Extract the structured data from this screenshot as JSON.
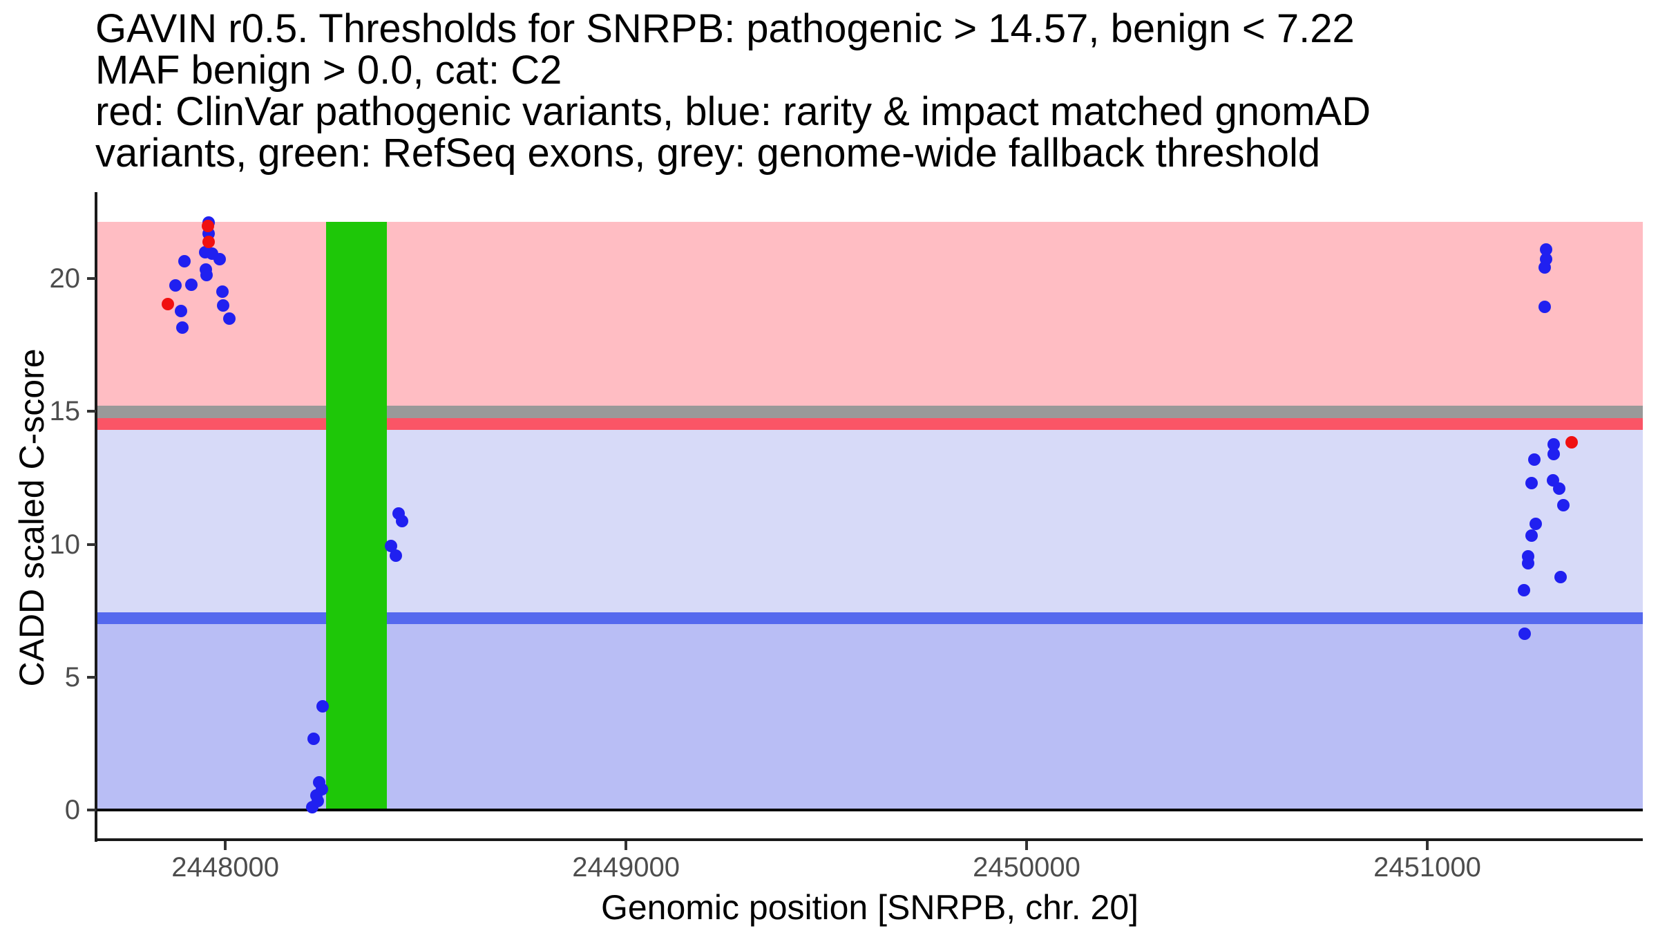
{
  "title": {
    "lines": [
      "GAVIN r0.5. Thresholds for SNRPB: pathogenic > 14.57, benign < 7.22",
      "MAF benign > 0.0, cat: C2",
      "red: ClinVar pathogenic variants, blue: rarity & impact matched gnomAD",
      "variants, green: RefSeq exons, grey: genome-wide fallback threshold"
    ]
  },
  "axes": {
    "y": {
      "label": "CADD scaled C-score",
      "ticks": [
        0,
        5,
        10,
        15,
        20
      ]
    },
    "x": {
      "label": "Genomic position [SNRPB, chr. 20]",
      "ticks": [
        2448000,
        2449000,
        2450000,
        2451000
      ]
    }
  },
  "chart_data": {
    "type": "scatter",
    "title": "GAVIN r0.5. Thresholds for SNRPB: pathogenic > 14.57, benign < 7.22; MAF benign > 0.0, cat: C2",
    "xlabel": "Genomic position [SNRPB, chr. 20]",
    "ylabel": "CADD scaled C-score",
    "xlim": [
      2447679,
      2451538
    ],
    "ylim": [
      -1.09,
      23.25
    ],
    "grid": false,
    "legend_position": "none",
    "thresholds": {
      "gene": "SNRPB",
      "pathogenic": 14.57,
      "benign": 7.22,
      "genome_wide_fallback": 15.0,
      "maf_benign": 0.0,
      "category": "C2"
    },
    "bands": [
      {
        "name": "pathogenic-region",
        "y0": 15.21,
        "y1": 22.13,
        "color": "#ffbdc3"
      },
      {
        "name": "fallback-threshold-band",
        "y0": 14.75,
        "y1": 15.21,
        "color": "#999999"
      },
      {
        "name": "pathogenic-threshold-band",
        "y0": 14.3,
        "y1": 14.75,
        "color": "#fa5566"
      },
      {
        "name": "intermediate-region",
        "y0": 7.43,
        "y1": 14.3,
        "color": "#d7daf8"
      },
      {
        "name": "benign-threshold-band",
        "y0": 7.01,
        "y1": 7.43,
        "color": "#5569ee"
      },
      {
        "name": "benign-region",
        "y0": 0,
        "y1": 7.01,
        "color": "#b9bef5"
      }
    ],
    "exons": [
      {
        "name": "refseq-exon",
        "x0": 2448252,
        "x1": 2448403,
        "y0": 0,
        "y1": 22.13,
        "color": "#1ec708"
      }
    ],
    "zero_line": {
      "y": 0,
      "color": "#000000"
    },
    "series": [
      {
        "name": "rarity & impact matched gnomAD variants",
        "color": "#2020f0",
        "points": [
          [
            2447958,
            22.1
          ],
          [
            2447959,
            21.68
          ],
          [
            2447949,
            21.0
          ],
          [
            2447967,
            20.94
          ],
          [
            2447986,
            20.73
          ],
          [
            2447898,
            20.64
          ],
          [
            2447952,
            20.34
          ],
          [
            2447953,
            20.12
          ],
          [
            2447915,
            19.76
          ],
          [
            2447875,
            19.73
          ],
          [
            2447993,
            19.51
          ],
          [
            2447994,
            18.99
          ],
          [
            2447890,
            18.78
          ],
          [
            2448010,
            18.49
          ],
          [
            2447893,
            18.15
          ],
          [
            2448243,
            3.91
          ],
          [
            2448221,
            2.67
          ],
          [
            2448235,
            1.04
          ],
          [
            2448241,
            0.79
          ],
          [
            2448228,
            0.56
          ],
          [
            2448231,
            0.33
          ],
          [
            2448217,
            0.11
          ],
          [
            2448432,
            11.16
          ],
          [
            2448442,
            10.88
          ],
          [
            2448413,
            9.94
          ],
          [
            2448425,
            9.58
          ],
          [
            2451297,
            21.08
          ],
          [
            2451297,
            20.73
          ],
          [
            2451294,
            20.42
          ],
          [
            2451294,
            18.93
          ],
          [
            2451315,
            13.75
          ],
          [
            2451315,
            13.4
          ],
          [
            2451267,
            13.19
          ],
          [
            2451314,
            12.41
          ],
          [
            2451261,
            12.3
          ],
          [
            2451329,
            12.1
          ],
          [
            2451340,
            11.48
          ],
          [
            2451270,
            10.78
          ],
          [
            2451260,
            10.33
          ],
          [
            2451251,
            9.55
          ],
          [
            2451251,
            9.29
          ],
          [
            2451332,
            8.77
          ],
          [
            2451241,
            8.28
          ],
          [
            2451244,
            6.63
          ]
        ]
      },
      {
        "name": "ClinVar pathogenic variants",
        "color": "#f01010",
        "points": [
          [
            2447956,
            21.98
          ],
          [
            2447959,
            21.38
          ],
          [
            2447856,
            19.04
          ],
          [
            2451360,
            13.83
          ]
        ]
      }
    ]
  }
}
